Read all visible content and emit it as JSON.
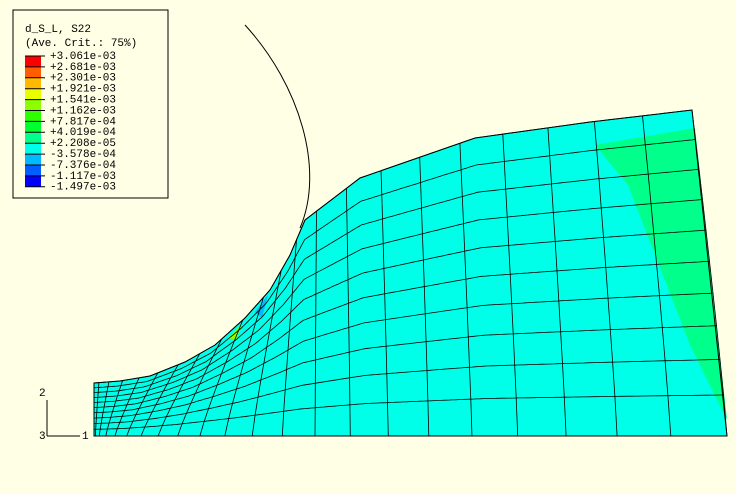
{
  "legend": {
    "title": "d_S_L, S22",
    "subtitle": "(Ave. Crit.: 75%)",
    "labels": [
      "+3.061e-03",
      "+2.681e-03",
      "+2.301e-03",
      "+1.921e-03",
      "+1.541e-03",
      "+1.162e-03",
      "+7.817e-04",
      "+4.019e-04",
      "+2.208e-05",
      "-3.578e-04",
      "-7.376e-04",
      "-1.117e-03",
      "-1.497e-03"
    ],
    "colors": [
      "#ff0000",
      "#ff5d00",
      "#ffb900",
      "#e8ff00",
      "#8bff00",
      "#2eff00",
      "#00ff2e",
      "#00ff8b",
      "#00ffe8",
      "#00b9ff",
      "#005dff",
      "#0000ff"
    ]
  },
  "triad": {
    "x": "1",
    "y": "2",
    "z": "3"
  }
}
